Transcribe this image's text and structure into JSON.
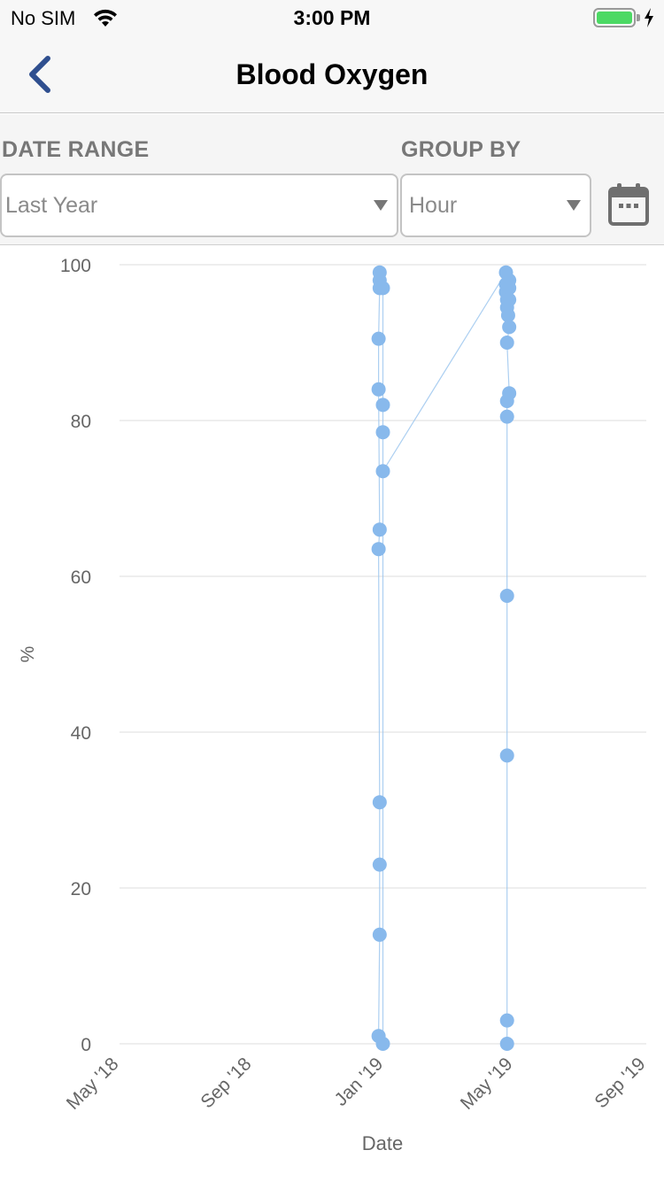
{
  "status_bar": {
    "carrier": "No SIM",
    "time": "3:00 PM",
    "battery_level": 1.0
  },
  "nav": {
    "title": "Blood Oxygen",
    "back_icon": "chevron-left-icon"
  },
  "filters": {
    "date_range_label": "DATE RANGE",
    "date_range_value": "Last Year",
    "group_by_label": "GROUP BY",
    "group_by_value": "Hour",
    "calendar_icon": "calendar-icon"
  },
  "colors": {
    "accent": "#2f4f8f",
    "point": "#88b9ec",
    "line": "#9ec7ee",
    "grid": "#dddddd",
    "axis_text": "#666666"
  },
  "chart_data": {
    "type": "scatter",
    "xlabel": "Date",
    "ylabel": "%",
    "ylim": [
      0,
      100
    ],
    "yticks": [
      0,
      20,
      40,
      60,
      80,
      100
    ],
    "xlim": [
      "2018-05-01",
      "2019-09-01"
    ],
    "xtick_labels": [
      {
        "date": "2018-05-01",
        "label": "May '18"
      },
      {
        "date": "2018-09-01",
        "label": "Sep '18"
      },
      {
        "date": "2019-01-01",
        "label": "Jan '19"
      },
      {
        "date": "2019-05-01",
        "label": "May '19"
      },
      {
        "date": "2019-09-01",
        "label": "Sep '19"
      }
    ],
    "grid": true,
    "connected": true,
    "series": [
      {
        "points": [
          {
            "date": "2018-12-28",
            "value": 99
          },
          {
            "date": "2018-12-28",
            "value": 98
          },
          {
            "date": "2018-12-28",
            "value": 97
          },
          {
            "date": "2018-12-27",
            "value": 90.5
          },
          {
            "date": "2018-12-27",
            "value": 84
          },
          {
            "date": "2018-12-28",
            "value": 66
          },
          {
            "date": "2018-12-27",
            "value": 63.5
          },
          {
            "date": "2018-12-28",
            "value": 31
          },
          {
            "date": "2018-12-28",
            "value": 23
          },
          {
            "date": "2018-12-28",
            "value": 14
          },
          {
            "date": "2018-12-27",
            "value": 1
          },
          {
            "date": "2018-12-31",
            "value": 0
          },
          {
            "date": "2018-12-31",
            "value": 97
          },
          {
            "date": "2018-12-31",
            "value": 82
          },
          {
            "date": "2018-12-31",
            "value": 78.5
          },
          {
            "date": "2018-12-31",
            "value": 73.5
          },
          {
            "date": "2019-04-24",
            "value": 99
          },
          {
            "date": "2019-04-24",
            "value": 97.5
          },
          {
            "date": "2019-04-24",
            "value": 96.5
          },
          {
            "date": "2019-04-25",
            "value": 95.5
          },
          {
            "date": "2019-04-25",
            "value": 94.5
          },
          {
            "date": "2019-04-27",
            "value": 98
          },
          {
            "date": "2019-04-27",
            "value": 97
          },
          {
            "date": "2019-04-27",
            "value": 95.5
          },
          {
            "date": "2019-04-26",
            "value": 93.5
          },
          {
            "date": "2019-04-27",
            "value": 92
          },
          {
            "date": "2019-04-25",
            "value": 90
          },
          {
            "date": "2019-04-27",
            "value": 83.5
          },
          {
            "date": "2019-04-25",
            "value": 82.5
          },
          {
            "date": "2019-04-25",
            "value": 80.5
          },
          {
            "date": "2019-04-25",
            "value": 57.5
          },
          {
            "date": "2019-04-25",
            "value": 37
          },
          {
            "date": "2019-04-25",
            "value": 3
          },
          {
            "date": "2019-04-25",
            "value": 0
          }
        ]
      }
    ]
  }
}
